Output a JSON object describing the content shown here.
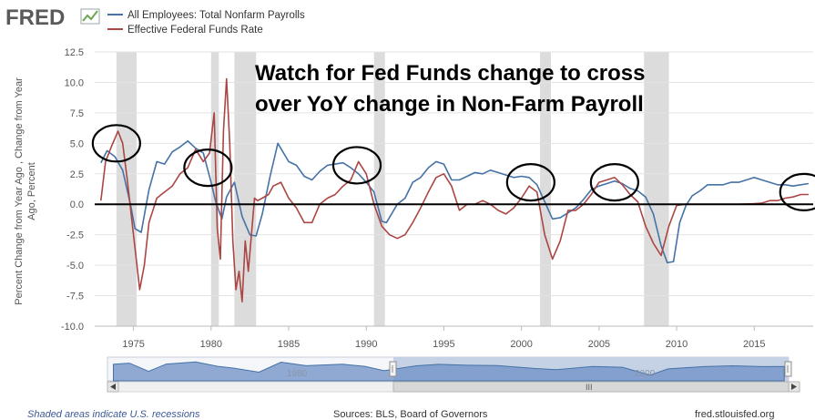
{
  "branding": {
    "logo": "FRED",
    "site": "fred.stlouisfed.org"
  },
  "legend": [
    {
      "name": "All Employees: Total Nonfarm Payrolls",
      "color": "#4572a7"
    },
    {
      "name": "Effective Federal Funds Rate",
      "color": "#aa4643"
    }
  ],
  "annotation": {
    "line1": "Watch for Fed Funds change to cross",
    "line2": "over YoY change in Non-Farm Payroll"
  },
  "footer": {
    "recession_note": "Shaded areas indicate U.S. recessions",
    "sources": "Sources: BLS, Board of Governors"
  },
  "navigator": {
    "labels": [
      "1980",
      "2000"
    ],
    "scroll_grip": "III"
  },
  "chart_data": {
    "type": "line",
    "title": "",
    "xlabel": "",
    "ylabel": "Percent Change from Year Ago , Change from Year Ago, Percent",
    "xlim": [
      1972.5,
      2018.8
    ],
    "ylim": [
      -10,
      12.5
    ],
    "x_ticks": [
      "1975",
      "1980",
      "1985",
      "1990",
      "1995",
      "2000",
      "2005",
      "2010",
      "2015"
    ],
    "x_tick_values": [
      1975,
      1980,
      1985,
      1990,
      1995,
      2000,
      2005,
      2010,
      2015
    ],
    "y_ticks": [
      "12.5",
      "10.0",
      "7.5",
      "5.0",
      "2.5",
      "0.0",
      "-2.5",
      "-5.0",
      "-7.5",
      "-10.0"
    ],
    "y_tick_values": [
      12.5,
      10,
      7.5,
      5,
      2.5,
      0,
      -2.5,
      -5,
      -7.5,
      -10
    ],
    "recessions": [
      [
        1973.9,
        1975.2
      ],
      [
        1980.0,
        1980.5
      ],
      [
        1981.5,
        1982.9
      ],
      [
        1990.5,
        1991.2
      ],
      [
        2001.2,
        2001.9
      ],
      [
        2007.9,
        2009.5
      ]
    ],
    "series": [
      {
        "name": "All Employees: Total Nonfarm Payrolls",
        "color": "#4572a7",
        "x": [
          1972.9,
          1973.3,
          1973.8,
          1974.3,
          1974.8,
          1975.1,
          1975.5,
          1976.0,
          1976.5,
          1977.0,
          1977.5,
          1978.0,
          1978.5,
          1979.0,
          1979.5,
          1980.0,
          1980.3,
          1980.7,
          1981.0,
          1981.5,
          1982.0,
          1982.5,
          1982.9,
          1983.3,
          1983.8,
          1984.3,
          1985.0,
          1985.5,
          1986.0,
          1986.5,
          1987.0,
          1987.5,
          1988.0,
          1988.5,
          1989.0,
          1989.5,
          1990.0,
          1990.5,
          1991.0,
          1991.3,
          1992.0,
          1992.5,
          1993.0,
          1993.5,
          1994.0,
          1994.5,
          1995.0,
          1995.5,
          1996.0,
          1996.5,
          1997.0,
          1997.5,
          1998.0,
          1998.5,
          1999.0,
          1999.5,
          2000.0,
          2000.5,
          2001.0,
          2001.5,
          2002.0,
          2002.5,
          2003.0,
          2003.5,
          2004.0,
          2004.5,
          2005.0,
          2005.5,
          2006.0,
          2006.5,
          2007.0,
          2007.5,
          2008.0,
          2008.5,
          2009.0,
          2009.4,
          2009.8,
          2010.2,
          2010.6,
          2011.0,
          2011.5,
          2012.0,
          2012.5,
          2013.0,
          2013.5,
          2014.0,
          2014.5,
          2015.0,
          2015.5,
          2016.0,
          2016.5,
          2017.0,
          2017.5,
          2018.0,
          2018.5
        ],
        "y": [
          3.4,
          4.4,
          3.9,
          2.8,
          0.0,
          -2.0,
          -2.3,
          1.2,
          3.5,
          3.3,
          4.3,
          4.7,
          5.2,
          4.6,
          4.2,
          1.8,
          0.2,
          -1.2,
          0.6,
          1.8,
          -1.0,
          -2.5,
          -2.6,
          -0.8,
          2.3,
          5.0,
          3.5,
          3.2,
          2.3,
          2.0,
          2.7,
          3.2,
          3.3,
          3.4,
          3.0,
          2.5,
          1.8,
          1.0,
          -1.4,
          -1.5,
          0.0,
          0.5,
          1.8,
          2.2,
          3.0,
          3.5,
          3.3,
          2.0,
          2.0,
          2.3,
          2.6,
          2.5,
          2.8,
          2.6,
          2.4,
          2.2,
          2.3,
          2.2,
          1.6,
          0.2,
          -1.2,
          -1.1,
          -0.7,
          -0.3,
          0.4,
          1.2,
          1.5,
          1.7,
          1.9,
          1.7,
          1.3,
          1.1,
          0.6,
          -0.8,
          -3.4,
          -4.8,
          -4.7,
          -1.5,
          -0.1,
          0.7,
          1.1,
          1.6,
          1.6,
          1.6,
          1.8,
          1.8,
          2.0,
          2.2,
          2.0,
          1.8,
          1.6,
          1.6,
          1.5,
          1.6,
          1.7
        ]
      },
      {
        "name": "Effective Federal Funds Rate",
        "color": "#aa4643",
        "x": [
          1972.9,
          1973.2,
          1973.6,
          1974.0,
          1974.3,
          1974.6,
          1975.0,
          1975.4,
          1975.7,
          1976.0,
          1976.5,
          1977.0,
          1977.5,
          1978.0,
          1978.5,
          1979.0,
          1979.5,
          1979.9,
          1980.2,
          1980.4,
          1980.6,
          1980.8,
          1981.0,
          1981.2,
          1981.4,
          1981.6,
          1981.8,
          1982.0,
          1982.2,
          1982.4,
          1982.6,
          1982.8,
          1983.0,
          1983.3,
          1983.7,
          1984.0,
          1984.5,
          1985.0,
          1985.5,
          1986.0,
          1986.5,
          1987.0,
          1987.5,
          1988.0,
          1988.5,
          1989.0,
          1989.5,
          1990.0,
          1990.5,
          1991.0,
          1991.5,
          1992.0,
          1992.5,
          1993.0,
          1993.5,
          1994.0,
          1994.5,
          1995.0,
          1995.5,
          1996.0,
          1996.5,
          1997.0,
          1997.5,
          1998.0,
          1998.5,
          1999.0,
          1999.5,
          2000.0,
          2000.5,
          2001.0,
          2001.5,
          2002.0,
          2002.5,
          2003.0,
          2003.5,
          2004.0,
          2004.5,
          2005.0,
          2005.5,
          2006.0,
          2006.5,
          2007.0,
          2007.5,
          2008.0,
          2008.5,
          2009.0,
          2009.5,
          2010.0,
          2010.5,
          2011.0,
          2012.0,
          2013.0,
          2014.0,
          2015.0,
          2015.5,
          2016.0,
          2016.5,
          2017.0,
          2017.5,
          2018.0,
          2018.5
        ],
        "y": [
          0.3,
          3.5,
          4.8,
          6.0,
          5.0,
          2.0,
          -2.5,
          -7.0,
          -5.0,
          -1.5,
          0.5,
          1.0,
          1.5,
          2.5,
          3.0,
          4.5,
          3.5,
          4.2,
          7.5,
          -2.0,
          -4.5,
          6.0,
          10.3,
          5.0,
          -3.0,
          -7.0,
          -5.5,
          -8.0,
          -3.0,
          -5.5,
          -2.5,
          0.5,
          0.3,
          0.5,
          0.8,
          1.5,
          1.8,
          0.5,
          -0.3,
          -1.5,
          -1.5,
          0.0,
          0.5,
          0.8,
          1.5,
          2.0,
          3.5,
          2.5,
          0.0,
          -1.8,
          -2.5,
          -2.8,
          -2.5,
          -1.5,
          -0.3,
          1.0,
          2.2,
          2.5,
          1.5,
          -0.5,
          0.0,
          0.0,
          0.3,
          0.0,
          -0.5,
          -0.8,
          -0.3,
          0.5,
          1.5,
          1.0,
          -2.5,
          -4.5,
          -3.0,
          -0.5,
          -0.5,
          0.0,
          0.8,
          1.8,
          2.0,
          2.2,
          1.6,
          0.8,
          0.2,
          -1.8,
          -3.2,
          -4.2,
          -1.8,
          -0.1,
          0.0,
          0.0,
          0.0,
          0.0,
          0.0,
          0.05,
          0.1,
          0.3,
          0.3,
          0.5,
          0.6,
          0.8,
          0.8
        ]
      }
    ],
    "circles": [
      {
        "x": 1973.9,
        "y": 5.0
      },
      {
        "x": 1979.8,
        "y": 3.0
      },
      {
        "x": 1989.4,
        "y": 3.2
      },
      {
        "x": 2000.6,
        "y": 1.8
      },
      {
        "x": 2006.0,
        "y": 1.8
      },
      {
        "x": 2018.2,
        "y": 1.0
      }
    ],
    "navigator_series": {
      "x": [
        1972.9,
        1974.0,
        1975.3,
        1976.5,
        1978.5,
        1980.0,
        1981.0,
        1982.8,
        1984.3,
        1986.0,
        1988.5,
        1990.0,
        1991.3,
        1993.5,
        1995.0,
        1997.0,
        1999.0,
        2001.5,
        2003.0,
        2005.5,
        2007.5,
        2009.4,
        2010.6,
        2013.0,
        2015.0,
        2017.0,
        2018.5
      ],
      "y": [
        3.4,
        4.2,
        -2.0,
        3.5,
        5.2,
        1.8,
        0.6,
        -2.6,
        5.0,
        2.3,
        3.4,
        1.8,
        -1.5,
        2.2,
        3.3,
        2.6,
        2.4,
        0.2,
        -0.7,
        1.7,
        1.1,
        -4.8,
        -0.1,
        1.6,
        2.2,
        1.6,
        1.7
      ]
    }
  }
}
